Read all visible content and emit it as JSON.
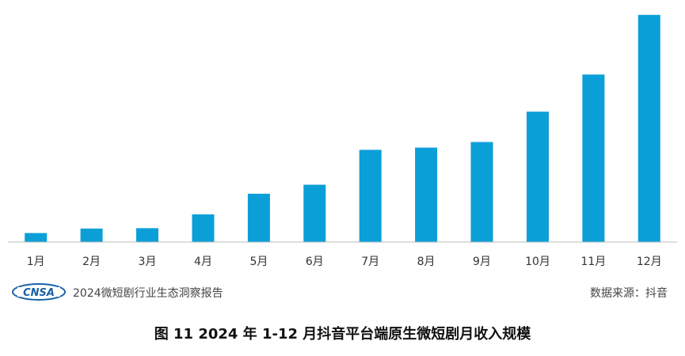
{
  "chart_data": {
    "type": "bar",
    "categories": [
      "1月",
      "2月",
      "3月",
      "4月",
      "5月",
      "6月",
      "7月",
      "8月",
      "9月",
      "10月",
      "11月",
      "12月"
    ],
    "values": [
      4,
      6,
      6.2,
      12.3,
      21.5,
      25.5,
      41,
      42,
      44.5,
      58,
      74.5,
      101
    ],
    "title": "",
    "xlabel": "",
    "ylabel": "",
    "ylim": [
      0,
      102
    ],
    "grid": false,
    "bar_color": "#0b9fd8"
  },
  "source_row": {
    "logo_text": "CNSA",
    "report_name": "2024微短剧行业生态洞察报告",
    "source": "数据来源：抖音"
  },
  "caption": "图 11  2024 年 1-12 月抖音平台端原生微短剧月收入规模"
}
